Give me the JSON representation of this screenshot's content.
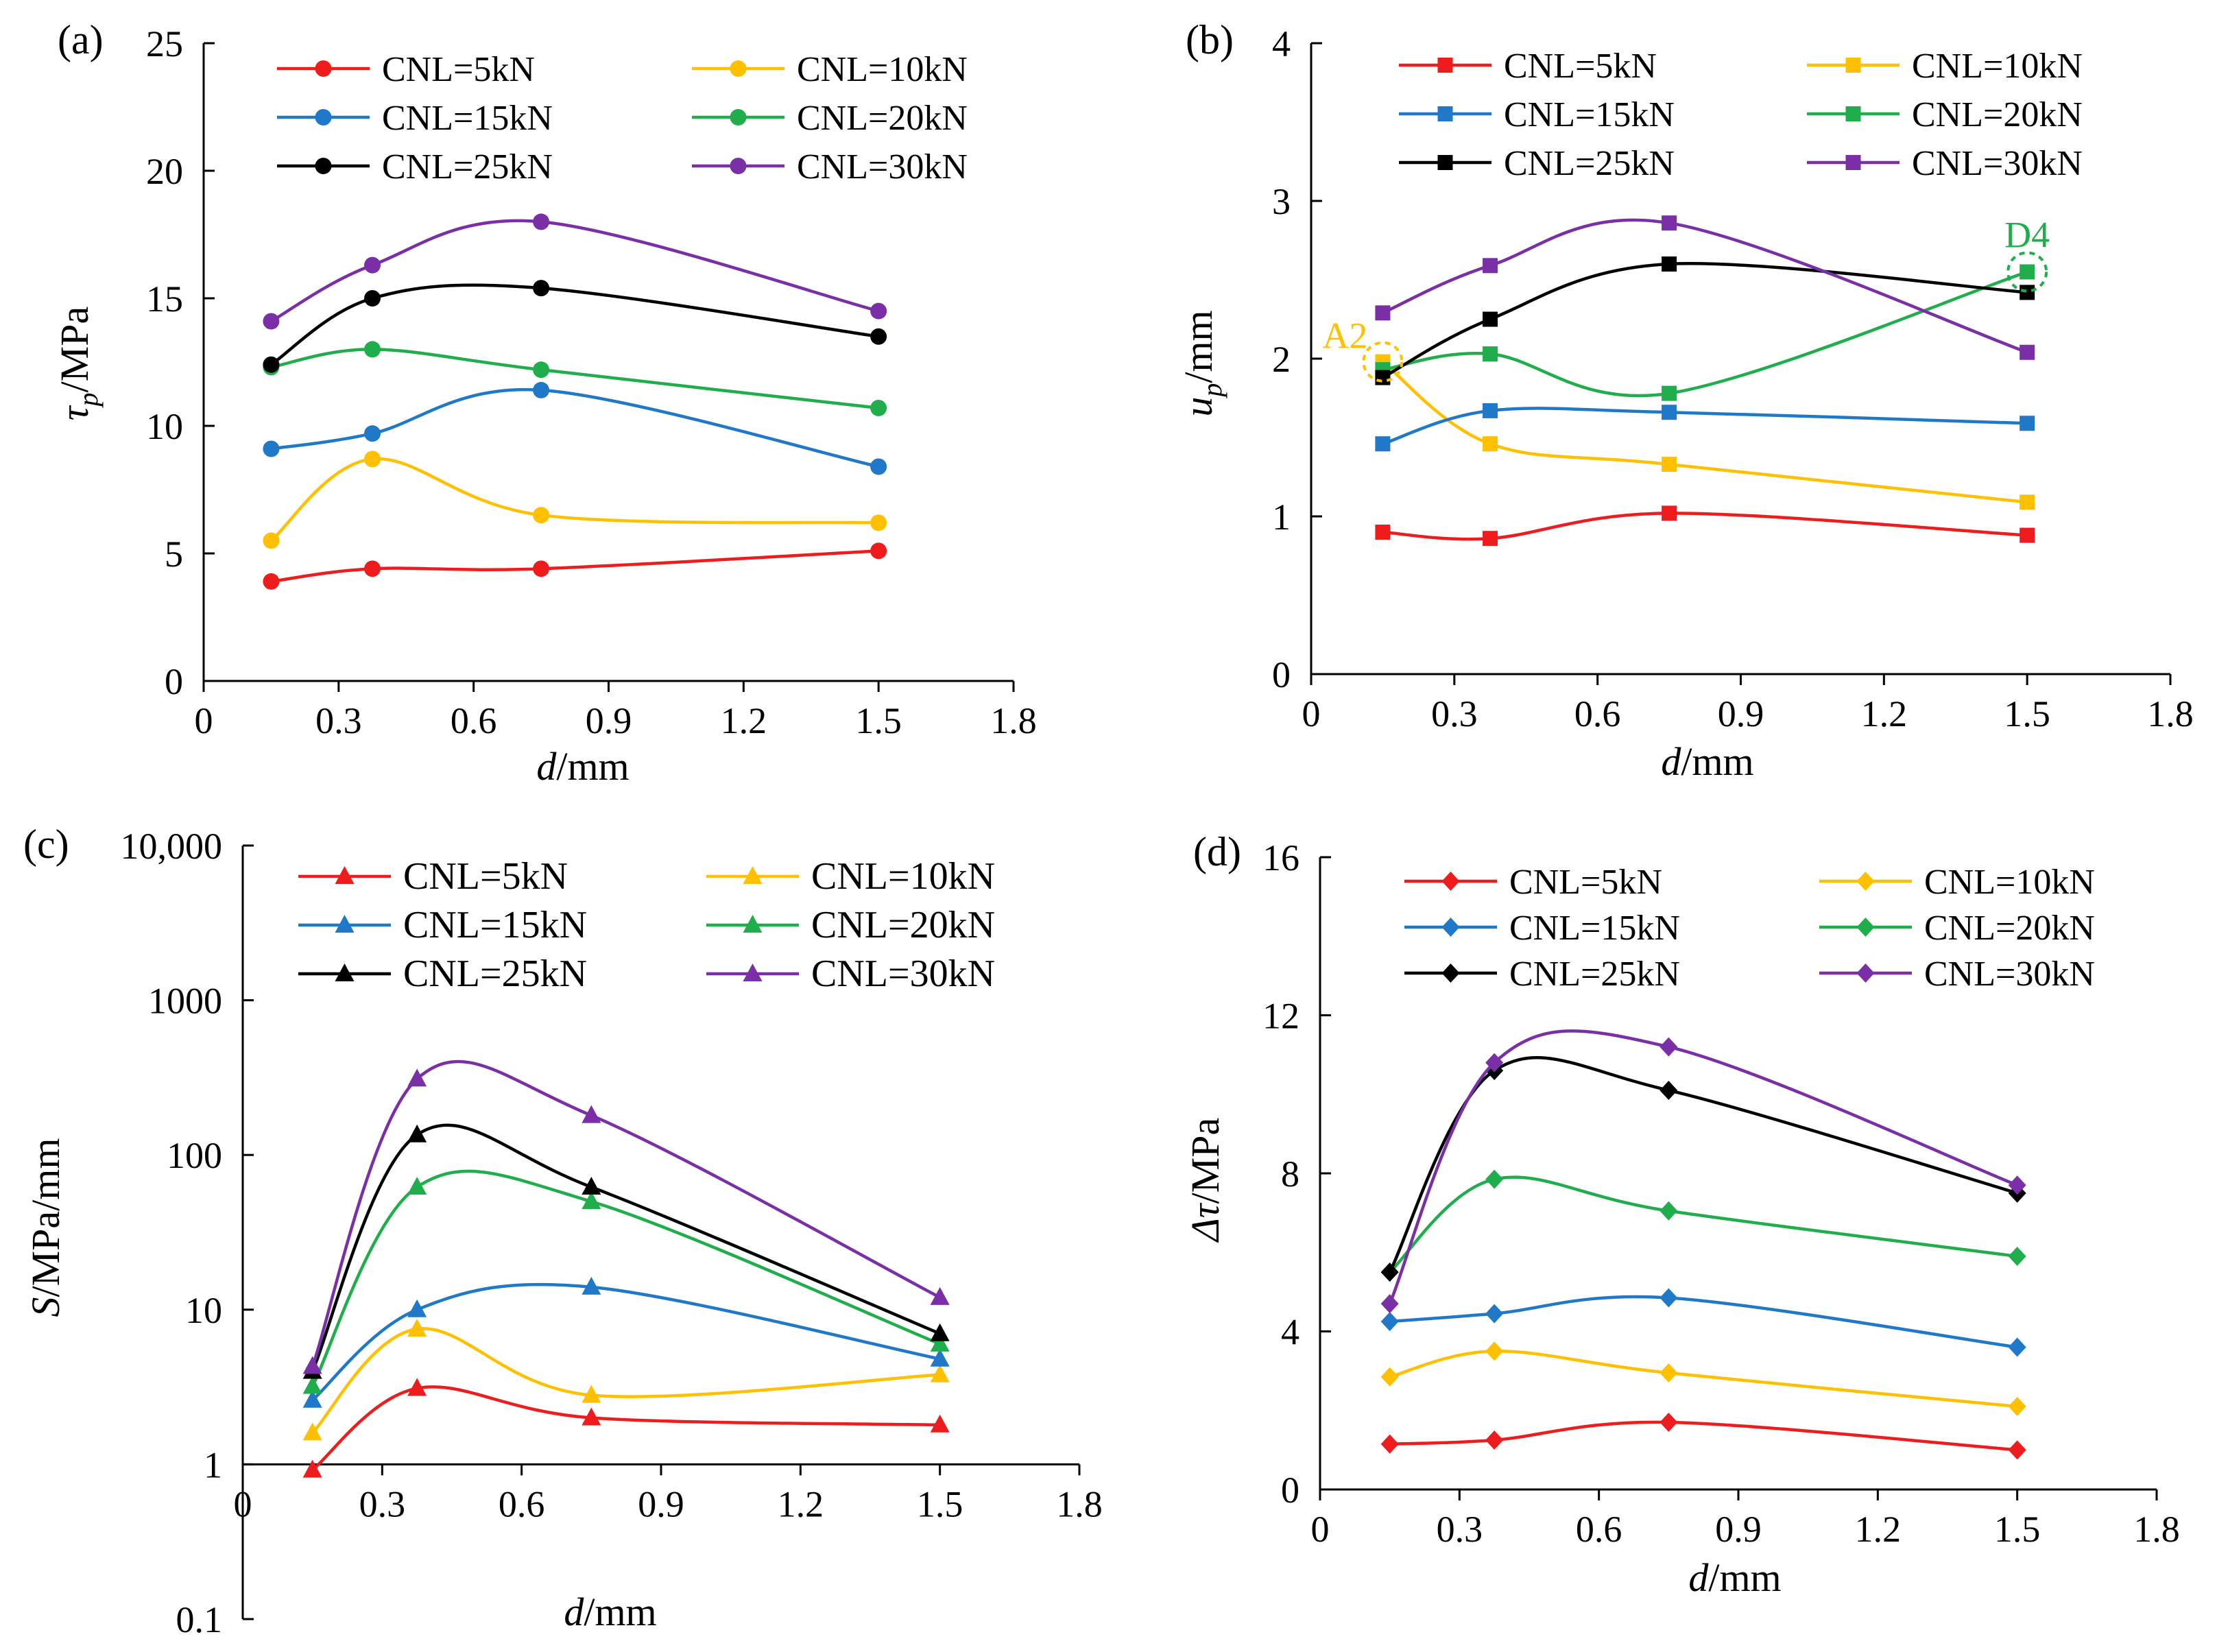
{
  "colors": {
    "CNL=5kN": "#ee1c1c",
    "CNL=10kN": "#ffc000",
    "CNL=15kN": "#1f78c8",
    "CNL=20kN": "#1fae4b",
    "CNL=25kN": "#000000",
    "CNL=30kN": "#7b2fa6"
  },
  "chart_data": [
    {
      "id": "a",
      "panel_label": "(a)",
      "type": "line",
      "marker": "circle",
      "xlabel": {
        "italic": "d",
        "rest": "/mm"
      },
      "ylabel": {
        "italic": "τ",
        "sub": "p",
        "rest": "/MPa"
      },
      "xlim": [
        0,
        1.8
      ],
      "ylim": [
        0,
        25
      ],
      "x_ticks": [
        "0",
        "0.3",
        "0.6",
        "0.9",
        "1.2",
        "1.5",
        "1.8"
      ],
      "y_ticks": [
        "0",
        "5",
        "10",
        "15",
        "20",
        "25"
      ],
      "x": [
        0.15,
        0.375,
        0.75,
        1.5
      ],
      "series": [
        {
          "name": "CNL=5kN",
          "values": [
            3.9,
            4.4,
            4.4,
            5.1
          ]
        },
        {
          "name": "CNL=10kN",
          "values": [
            5.5,
            8.7,
            6.5,
            6.2
          ]
        },
        {
          "name": "CNL=15kN",
          "values": [
            9.1,
            9.7,
            11.4,
            8.4
          ]
        },
        {
          "name": "CNL=20kN",
          "values": [
            12.3,
            13.0,
            12.2,
            10.7
          ]
        },
        {
          "name": "CNL=25kN",
          "values": [
            12.4,
            15.0,
            15.4,
            13.5
          ]
        },
        {
          "name": "CNL=30kN",
          "values": [
            14.1,
            16.3,
            18.0,
            14.5
          ]
        }
      ]
    },
    {
      "id": "b",
      "panel_label": "(b)",
      "type": "line",
      "marker": "square",
      "xlabel": {
        "italic": "d",
        "rest": "/mm"
      },
      "ylabel": {
        "italic": "u",
        "sub": "p",
        "rest": "/mm"
      },
      "xlim": [
        0,
        1.8
      ],
      "ylim": [
        0,
        4
      ],
      "x_ticks": [
        "0",
        "0.3",
        "0.6",
        "0.9",
        "1.2",
        "1.5",
        "1.8"
      ],
      "y_ticks": [
        "0",
        "1",
        "2",
        "3",
        "4"
      ],
      "x": [
        0.15,
        0.375,
        0.75,
        1.5
      ],
      "series": [
        {
          "name": "CNL=5kN",
          "values": [
            0.9,
            0.86,
            1.02,
            0.88
          ]
        },
        {
          "name": "CNL=10kN",
          "values": [
            1.98,
            1.46,
            1.33,
            1.09
          ]
        },
        {
          "name": "CNL=15kN",
          "values": [
            1.46,
            1.67,
            1.66,
            1.59
          ]
        },
        {
          "name": "CNL=20kN",
          "values": [
            1.93,
            2.03,
            1.78,
            2.55
          ]
        },
        {
          "name": "CNL=25kN",
          "values": [
            1.88,
            2.25,
            2.6,
            2.42
          ]
        },
        {
          "name": "CNL=30kN",
          "values": [
            2.29,
            2.59,
            2.86,
            2.04
          ]
        }
      ],
      "annotations": [
        {
          "text": "A2",
          "series": "CNL=10kN",
          "point": 0,
          "side": "left"
        },
        {
          "text": "D4",
          "series": "CNL=20kN",
          "point": 3,
          "side": "top"
        }
      ]
    },
    {
      "id": "c",
      "panel_label": "(c)",
      "type": "line",
      "marker": "triangle",
      "yscale": "log",
      "xlabel": {
        "italic": "d",
        "rest": "/mm"
      },
      "ylabel": {
        "italic": "S",
        "rest": "/MPa/mm"
      },
      "xlim": [
        0,
        1.8
      ],
      "ylim": [
        0.1,
        10000
      ],
      "x_ticks": [
        "0",
        "0.3",
        "0.6",
        "0.9",
        "1.2",
        "1.5",
        "1.8"
      ],
      "y_ticks": [
        "0.1",
        "1",
        "10",
        "100",
        "1000",
        "10,000"
      ],
      "x": [
        0.15,
        0.375,
        0.75,
        1.5
      ],
      "series": [
        {
          "name": "CNL=5kN",
          "values": [
            0.92,
            3.1,
            2.0,
            1.8
          ]
        },
        {
          "name": "CNL=10kN",
          "values": [
            1.6,
            7.5,
            2.8,
            3.8
          ]
        },
        {
          "name": "CNL=15kN",
          "values": [
            2.6,
            10.0,
            14.0,
            4.8
          ]
        },
        {
          "name": "CNL=20kN",
          "values": [
            3.2,
            62.0,
            50.0,
            6.0
          ]
        },
        {
          "name": "CNL=25kN",
          "values": [
            4.0,
            135.0,
            62.0,
            7.0
          ]
        },
        {
          "name": "CNL=30kN",
          "values": [
            4.3,
            310.0,
            180.0,
            12.0
          ]
        }
      ]
    },
    {
      "id": "d",
      "panel_label": "(d)",
      "type": "line",
      "marker": "diamond",
      "xlabel": {
        "italic": "d",
        "rest": "/mm"
      },
      "ylabel": {
        "italic": "Δτ",
        "rest": "/MPa"
      },
      "xlim": [
        0,
        1.8
      ],
      "ylim": [
        0,
        16
      ],
      "x_ticks": [
        "0",
        "0.3",
        "0.6",
        "0.9",
        "1.2",
        "1.5",
        "1.8"
      ],
      "y_ticks": [
        "0",
        "4",
        "8",
        "12",
        "16"
      ],
      "x": [
        0.15,
        0.375,
        0.75,
        1.5
      ],
      "series": [
        {
          "name": "CNL=5kN",
          "values": [
            1.15,
            1.25,
            1.7,
            1.0
          ]
        },
        {
          "name": "CNL=10kN",
          "values": [
            2.85,
            3.5,
            2.95,
            2.1
          ]
        },
        {
          "name": "CNL=15kN",
          "values": [
            4.25,
            4.45,
            4.85,
            3.6
          ]
        },
        {
          "name": "CNL=20kN",
          "values": [
            5.5,
            7.85,
            7.05,
            5.9
          ]
        },
        {
          "name": "CNL=25kN",
          "values": [
            5.5,
            10.6,
            10.1,
            7.5
          ]
        },
        {
          "name": "CNL=30kN",
          "values": [
            4.7,
            10.8,
            11.2,
            7.7
          ]
        }
      ]
    }
  ]
}
